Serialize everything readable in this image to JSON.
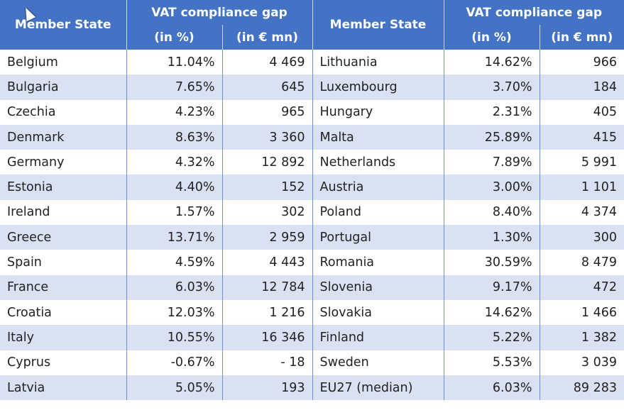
{
  "header": {
    "member_state": "Member State",
    "gap": "VAT compliance gap",
    "pct": "(in %)",
    "eur": "(in € mn)"
  },
  "left": [
    [
      "Belgium",
      "11.04%",
      "4 469"
    ],
    [
      "Bulgaria",
      "7.65%",
      "645"
    ],
    [
      "Czechia",
      "4.23%",
      "965"
    ],
    [
      "Denmark",
      "8.63%",
      "3 360"
    ],
    [
      "Germany",
      "4.32%",
      "12 892"
    ],
    [
      "Estonia",
      "4.40%",
      "152"
    ],
    [
      "Ireland",
      "1.57%",
      "302"
    ],
    [
      "Greece",
      "13.71%",
      "2 959"
    ],
    [
      "Spain",
      "4.59%",
      "4 443"
    ],
    [
      "France",
      "6.03%",
      "12 784"
    ],
    [
      "Croatia",
      "12.03%",
      "1 216"
    ],
    [
      "Italy",
      "10.55%",
      "16 346"
    ],
    [
      "Cyprus",
      "-0.67%",
      "- 18"
    ],
    [
      "Latvia",
      "5.05%",
      "193"
    ]
  ],
  "right": [
    [
      "Lithuania",
      "14.62%",
      "966"
    ],
    [
      "Luxembourg",
      "3.70%",
      "184"
    ],
    [
      "Hungary",
      "2.31%",
      "405"
    ],
    [
      "Malta",
      "25.89%",
      "415"
    ],
    [
      "Netherlands",
      "7.89%",
      "5 991"
    ],
    [
      "Austria",
      "3.00%",
      "1 101"
    ],
    [
      "Poland",
      "8.40%",
      "4 374"
    ],
    [
      "Portugal",
      "1.30%",
      "300"
    ],
    [
      "Romania",
      "30.59%",
      "8 479"
    ],
    [
      "Slovenia",
      "9.17%",
      "472"
    ],
    [
      "Slovakia",
      "14.62%",
      "1 466"
    ],
    [
      "Finland",
      "5.22%",
      "1 382"
    ],
    [
      "Sweden",
      "5.53%",
      "3 039"
    ],
    [
      "EU27 (median)",
      "6.03%",
      "89 283"
    ]
  ],
  "colors": {
    "header": "#4472C4",
    "band": "#D9E1F2"
  }
}
